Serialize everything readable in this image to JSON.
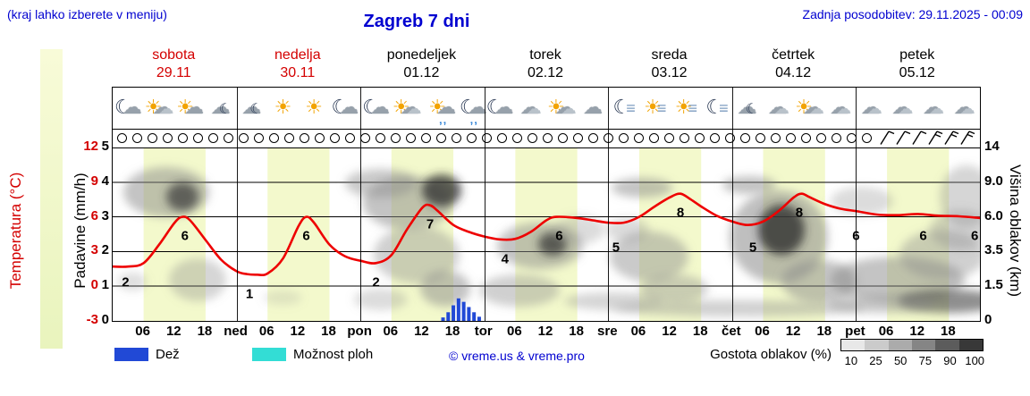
{
  "header": {
    "hint": "(kraj lahko izberete v meniju)",
    "title": "Zagreb 7 dni",
    "updated": "Zadnja posodobitev: 29.11.2025 - 00:09"
  },
  "days": [
    {
      "name": "sobota",
      "date": "29.11",
      "weekend": true
    },
    {
      "name": "nedelja",
      "date": "30.11",
      "weekend": true
    },
    {
      "name": "ponedeljek",
      "date": "01.12",
      "weekend": false
    },
    {
      "name": "torek",
      "date": "02.12",
      "weekend": false
    },
    {
      "name": "sreda",
      "date": "03.12",
      "weekend": false
    },
    {
      "name": "četrtek",
      "date": "04.12",
      "weekend": false
    },
    {
      "name": "petek",
      "date": "05.12",
      "weekend": false
    }
  ],
  "axes": {
    "left_temp": {
      "label": "Temperatura (°C)",
      "ticks": [
        "12",
        "9",
        "6",
        "3",
        "0",
        "-3"
      ]
    },
    "left_precip": {
      "label": "Padavine (mm/h)",
      "ticks": [
        "5",
        "4",
        "3",
        "2",
        "1",
        "0"
      ]
    },
    "right_cloud": {
      "label": "Višina oblakov (km)",
      "ticks": [
        "14",
        "9.0",
        "6.0",
        "3.5",
        "1.5",
        "0"
      ]
    },
    "x_hours": [
      "06",
      "12",
      "18"
    ],
    "x_daybreaks": [
      "ned",
      "pon",
      "tor",
      "sre",
      "čet",
      "pet"
    ]
  },
  "icons": [
    [
      "cloud-moon",
      "sun-clouds",
      "sun-cloud",
      "moon-cloud"
    ],
    [
      "moon-cloud",
      "sun",
      "sun",
      "cloud-moon"
    ],
    [
      "cloud-moon",
      "sun-clouds",
      "cloud-rain-sun",
      "cloud-rain-moon"
    ],
    [
      "cloud-moon",
      "clouds",
      "sun-clouds",
      "cloud"
    ],
    [
      "fog-moon",
      "fog-sun",
      "fog-sun",
      "fog-moon"
    ],
    [
      "moon-cloud",
      "clouds",
      "sun-clouds",
      "clouds"
    ],
    [
      "clouds",
      "clouds",
      "clouds",
      "clouds"
    ]
  ],
  "legend": {
    "rain": "Dež",
    "showers": "Možnost ploh",
    "copyright": "© vreme.us & vreme.pro",
    "cloud_density": "Gostota oblakov (%)",
    "density_ticks": [
      "10",
      "25",
      "50",
      "75",
      "90",
      "100"
    ],
    "density_colors": [
      "#e8e8e8",
      "#cbcbcb",
      "#ababab",
      "#858585",
      "#5c5c5c",
      "#383838"
    ]
  },
  "colors": {
    "blue_text": "#0000d0",
    "red": "#d40000",
    "temp_line": "#ee0000",
    "day_band": "#f3f9cc",
    "rain_bar": "#2149d6",
    "showers": "#33ddd5"
  },
  "chart_data": {
    "type": "line",
    "title": "Zagreb 7 dni",
    "x_range_hours": [
      0,
      168
    ],
    "ylim_temp_c": [
      -3,
      12
    ],
    "ylim_precip_mm_h": [
      0,
      5
    ],
    "ylim_cloud_km": [
      0,
      14
    ],
    "day_band_hours": [
      6,
      18
    ],
    "series": [
      {
        "name": "Temperatura",
        "unit": "°C",
        "points": [
          [
            0,
            1.7
          ],
          [
            3,
            1.7
          ],
          [
            6,
            2.0
          ],
          [
            9,
            3.6
          ],
          [
            12,
            5.5
          ],
          [
            13.5,
            6.0
          ],
          [
            15,
            5.7
          ],
          [
            18,
            4.0
          ],
          [
            21,
            2.3
          ],
          [
            24,
            1.3
          ],
          [
            26,
            1.05
          ],
          [
            28,
            1.0
          ],
          [
            30,
            1.1
          ],
          [
            33,
            2.4
          ],
          [
            36,
            5.2
          ],
          [
            37.5,
            6.0
          ],
          [
            39,
            5.5
          ],
          [
            42,
            3.6
          ],
          [
            45,
            2.6
          ],
          [
            48,
            2.2
          ],
          [
            51,
            2.0
          ],
          [
            54,
            2.7
          ],
          [
            57,
            4.9
          ],
          [
            60,
            6.8
          ],
          [
            61.5,
            7.0
          ],
          [
            63,
            6.5
          ],
          [
            66,
            5.3
          ],
          [
            69,
            4.7
          ],
          [
            72,
            4.3
          ],
          [
            75,
            4.05
          ],
          [
            78,
            4.1
          ],
          [
            81,
            4.7
          ],
          [
            84,
            5.7
          ],
          [
            86,
            6.0
          ],
          [
            90,
            5.9
          ],
          [
            93,
            5.7
          ],
          [
            96,
            5.5
          ],
          [
            99,
            5.5
          ],
          [
            102,
            6.0
          ],
          [
            105,
            6.9
          ],
          [
            108,
            7.7
          ],
          [
            110,
            8.0
          ],
          [
            112,
            7.5
          ],
          [
            114,
            6.9
          ],
          [
            117,
            6.1
          ],
          [
            120,
            5.6
          ],
          [
            123,
            5.3
          ],
          [
            126,
            5.6
          ],
          [
            129,
            6.5
          ],
          [
            132,
            7.7
          ],
          [
            133.5,
            8.0
          ],
          [
            135,
            7.7
          ],
          [
            138,
            7.1
          ],
          [
            141,
            6.7
          ],
          [
            144,
            6.5
          ],
          [
            148,
            6.2
          ],
          [
            152,
            6.15
          ],
          [
            156,
            6.25
          ],
          [
            160,
            6.1
          ],
          [
            164,
            6.05
          ],
          [
            168,
            5.9
          ]
        ]
      },
      {
        "name": "Padavine",
        "unit": "mm/h",
        "bars": [
          [
            64,
            0.1
          ],
          [
            65,
            0.25
          ],
          [
            66,
            0.45
          ],
          [
            67,
            0.65
          ],
          [
            68,
            0.55
          ],
          [
            69,
            0.4
          ],
          [
            70,
            0.25
          ],
          [
            71,
            0.12
          ]
        ]
      }
    ],
    "temp_point_labels": [
      [
        2.5,
        2
      ],
      [
        14,
        6
      ],
      [
        26.5,
        1
      ],
      [
        37.5,
        6
      ],
      [
        51,
        2
      ],
      [
        61.5,
        7
      ],
      [
        76,
        4
      ],
      [
        86.5,
        6
      ],
      [
        97.5,
        5
      ],
      [
        110,
        8
      ],
      [
        124,
        5
      ],
      [
        133,
        8
      ],
      [
        144,
        6
      ],
      [
        157,
        6
      ],
      [
        167,
        6
      ]
    ],
    "cloud_blobs": [
      [
        60,
        50,
        48,
        28,
        0.5
      ],
      [
        78,
        55,
        18,
        16,
        0.72,
        "#3a3a3a"
      ],
      [
        95,
        148,
        32,
        24,
        0.35
      ],
      [
        22,
        150,
        16,
        10,
        0.28
      ],
      [
        190,
        168,
        22,
        8,
        0.2
      ],
      [
        300,
        40,
        40,
        16,
        0.45
      ],
      [
        330,
        62,
        50,
        30,
        0.5
      ],
      [
        368,
        48,
        22,
        18,
        0.78,
        "#303030"
      ],
      [
        340,
        120,
        48,
        32,
        0.4
      ],
      [
        372,
        158,
        28,
        20,
        0.5
      ],
      [
        300,
        170,
        30,
        12,
        0.3
      ],
      [
        455,
        160,
        45,
        18,
        0.4
      ],
      [
        478,
        110,
        48,
        26,
        0.5
      ],
      [
        492,
        108,
        16,
        13,
        0.72,
        "#333333"
      ],
      [
        522,
        92,
        28,
        16,
        0.3
      ],
      [
        560,
        172,
        55,
        10,
        0.35
      ],
      [
        592,
        45,
        34,
        11,
        0.5
      ],
      [
        600,
        122,
        44,
        28,
        0.45
      ],
      [
        628,
        158,
        38,
        16,
        0.4
      ],
      [
        576,
        92,
        24,
        14,
        0.3
      ],
      [
        700,
        180,
        140,
        9,
        0.4
      ],
      [
        712,
        42,
        30,
        10,
        0.5
      ],
      [
        745,
        100,
        55,
        52,
        0.55
      ],
      [
        748,
        92,
        26,
        28,
        0.78,
        "#2e2e2e"
      ],
      [
        790,
        150,
        42,
        24,
        0.5
      ],
      [
        838,
        60,
        35,
        16,
        0.3
      ],
      [
        878,
        148,
        75,
        26,
        0.5
      ],
      [
        928,
        120,
        48,
        28,
        0.4
      ],
      [
        948,
        92,
        34,
        22,
        0.35
      ],
      [
        936,
        172,
        58,
        13,
        0.6,
        "#444444"
      ],
      [
        860,
        175,
        60,
        10,
        0.45
      ],
      [
        955,
        55,
        30,
        35,
        0.35
      ]
    ],
    "precip_prob_circles": 50,
    "wind_barbs": 6
  }
}
